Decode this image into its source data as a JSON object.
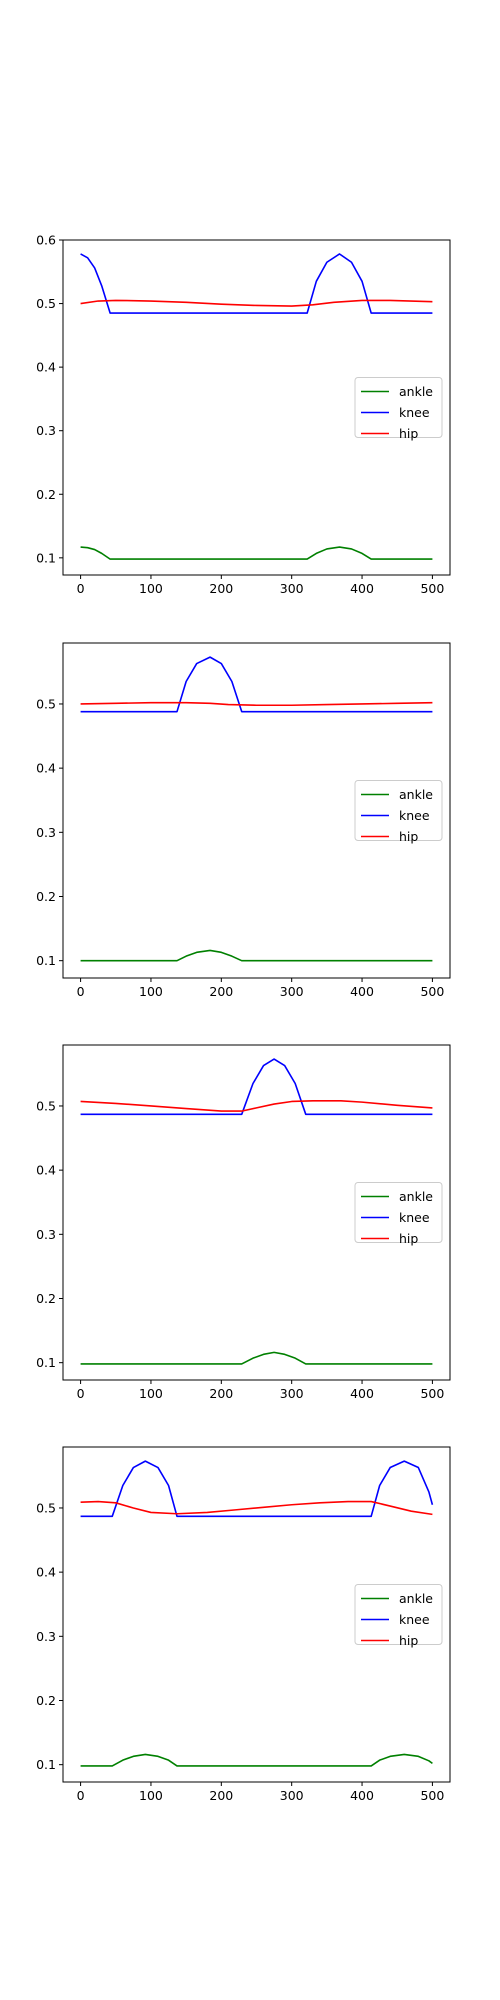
{
  "figure": {
    "background": "#ffffff"
  },
  "chart_data": [
    {
      "type": "line",
      "title": "",
      "xlabel": "",
      "ylabel": "",
      "xlim": [
        -25,
        525
      ],
      "ylim": [
        0.073,
        0.6
      ],
      "xticks": [
        "0",
        "100",
        "200",
        "300",
        "400",
        "500"
      ],
      "yticks": [
        "0.1",
        "0.2",
        "0.3",
        "0.4",
        "0.5",
        "0.6"
      ],
      "grid": false,
      "legend_position": "center-right",
      "series": [
        {
          "name": "ankle",
          "color": "#008000",
          "x": [
            0,
            10,
            20,
            30,
            42,
            60,
            100,
            150,
            200,
            250,
            300,
            322,
            335,
            350,
            368,
            385,
            400,
            413,
            430,
            470,
            500
          ],
          "values": [
            0.117,
            0.116,
            0.113,
            0.107,
            0.098,
            0.098,
            0.098,
            0.098,
            0.098,
            0.098,
            0.098,
            0.098,
            0.107,
            0.114,
            0.117,
            0.114,
            0.107,
            0.098,
            0.098,
            0.098,
            0.098
          ]
        },
        {
          "name": "knee",
          "color": "#0000ff",
          "x": [
            0,
            10,
            20,
            30,
            42,
            60,
            100,
            150,
            200,
            250,
            300,
            322,
            335,
            350,
            368,
            385,
            400,
            413,
            430,
            470,
            500
          ],
          "values": [
            0.578,
            0.572,
            0.556,
            0.528,
            0.485,
            0.485,
            0.485,
            0.485,
            0.485,
            0.485,
            0.485,
            0.485,
            0.535,
            0.565,
            0.578,
            0.565,
            0.535,
            0.485,
            0.485,
            0.485,
            0.485
          ]
        },
        {
          "name": "hip",
          "color": "#ff0000",
          "x": [
            0,
            25,
            50,
            100,
            150,
            200,
            250,
            300,
            330,
            360,
            400,
            440,
            500
          ],
          "values": [
            0.5,
            0.504,
            0.505,
            0.504,
            0.502,
            0.499,
            0.497,
            0.496,
            0.498,
            0.502,
            0.505,
            0.505,
            0.503
          ]
        }
      ]
    },
    {
      "type": "line",
      "title": "",
      "xlabel": "",
      "ylabel": "",
      "xlim": [
        -25,
        525
      ],
      "ylim": [
        0.073,
        0.595
      ],
      "xticks": [
        "0",
        "100",
        "200",
        "300",
        "400",
        "500"
      ],
      "yticks": [
        "0.1",
        "0.2",
        "0.3",
        "0.4",
        "0.5"
      ],
      "grid": false,
      "legend_position": "center-right",
      "series": [
        {
          "name": "ankle",
          "color": "#008000",
          "x": [
            0,
            50,
            100,
            137,
            150,
            165,
            184,
            200,
            215,
            229,
            260,
            300,
            400,
            500
          ],
          "values": [
            0.1,
            0.1,
            0.1,
            0.1,
            0.107,
            0.113,
            0.116,
            0.113,
            0.107,
            0.1,
            0.1,
            0.1,
            0.1,
            0.1
          ]
        },
        {
          "name": "knee",
          "color": "#0000ff",
          "x": [
            0,
            50,
            100,
            137,
            150,
            165,
            184,
            200,
            215,
            229,
            260,
            300,
            400,
            500
          ],
          "values": [
            0.488,
            0.488,
            0.488,
            0.488,
            0.535,
            0.563,
            0.573,
            0.563,
            0.535,
            0.488,
            0.488,
            0.488,
            0.488,
            0.488
          ]
        },
        {
          "name": "hip",
          "color": "#ff0000",
          "x": [
            0,
            50,
            100,
            150,
            184,
            210,
            250,
            300,
            350,
            400,
            450,
            500
          ],
          "values": [
            0.5,
            0.501,
            0.502,
            0.502,
            0.501,
            0.499,
            0.498,
            0.498,
            0.499,
            0.5,
            0.501,
            0.502
          ]
        }
      ]
    },
    {
      "type": "line",
      "title": "",
      "xlabel": "",
      "ylabel": "",
      "xlim": [
        -25,
        525
      ],
      "ylim": [
        0.073,
        0.595
      ],
      "xticks": [
        "0",
        "100",
        "200",
        "300",
        "400",
        "500"
      ],
      "yticks": [
        "0.1",
        "0.2",
        "0.3",
        "0.4",
        "0.5"
      ],
      "grid": false,
      "legend_position": "center-right",
      "series": [
        {
          "name": "ankle",
          "color": "#008000",
          "x": [
            0,
            50,
            100,
            150,
            200,
            229,
            245,
            260,
            275,
            290,
            305,
            320,
            350,
            400,
            450,
            500
          ],
          "values": [
            0.098,
            0.098,
            0.098,
            0.098,
            0.098,
            0.098,
            0.107,
            0.113,
            0.116,
            0.113,
            0.107,
            0.098,
            0.098,
            0.098,
            0.098,
            0.098
          ]
        },
        {
          "name": "knee",
          "color": "#0000ff",
          "x": [
            0,
            50,
            100,
            150,
            200,
            229,
            245,
            260,
            275,
            290,
            305,
            320,
            350,
            400,
            450,
            500
          ],
          "values": [
            0.487,
            0.487,
            0.487,
            0.487,
            0.487,
            0.487,
            0.535,
            0.563,
            0.573,
            0.563,
            0.535,
            0.487,
            0.487,
            0.487,
            0.487,
            0.487
          ]
        },
        {
          "name": "hip",
          "color": "#ff0000",
          "x": [
            0,
            50,
            100,
            150,
            200,
            229,
            250,
            275,
            300,
            330,
            370,
            400,
            450,
            500
          ],
          "values": [
            0.507,
            0.504,
            0.5,
            0.496,
            0.492,
            0.492,
            0.497,
            0.503,
            0.507,
            0.508,
            0.508,
            0.506,
            0.501,
            0.497
          ]
        }
      ]
    },
    {
      "type": "line",
      "title": "",
      "xlabel": "",
      "ylabel": "",
      "xlim": [
        -25,
        525
      ],
      "ylim": [
        0.073,
        0.595
      ],
      "xticks": [
        "0",
        "100",
        "200",
        "300",
        "400",
        "500"
      ],
      "yticks": [
        "0.1",
        "0.2",
        "0.3",
        "0.4",
        "0.5"
      ],
      "grid": false,
      "legend_position": "center-right",
      "series": [
        {
          "name": "ankle",
          "color": "#008000",
          "x": [
            0,
            25,
            45,
            60,
            75,
            92,
            110,
            125,
            137,
            160,
            200,
            300,
            413,
            425,
            440,
            460,
            480,
            495,
            500
          ],
          "values": [
            0.098,
            0.098,
            0.098,
            0.107,
            0.113,
            0.116,
            0.113,
            0.107,
            0.098,
            0.098,
            0.098,
            0.098,
            0.098,
            0.107,
            0.113,
            0.116,
            0.113,
            0.106,
            0.102
          ]
        },
        {
          "name": "knee",
          "color": "#0000ff",
          "x": [
            0,
            25,
            45,
            60,
            75,
            92,
            110,
            125,
            137,
            160,
            200,
            300,
            413,
            425,
            440,
            460,
            480,
            495,
            500
          ],
          "values": [
            0.487,
            0.487,
            0.487,
            0.535,
            0.563,
            0.573,
            0.563,
            0.535,
            0.487,
            0.487,
            0.487,
            0.487,
            0.487,
            0.535,
            0.563,
            0.573,
            0.563,
            0.525,
            0.505
          ]
        },
        {
          "name": "hip",
          "color": "#ff0000",
          "x": [
            0,
            25,
            50,
            75,
            100,
            137,
            180,
            220,
            260,
            300,
            340,
            380,
            413,
            440,
            470,
            500
          ],
          "values": [
            0.509,
            0.51,
            0.508,
            0.5,
            0.493,
            0.491,
            0.493,
            0.497,
            0.501,
            0.505,
            0.508,
            0.51,
            0.51,
            0.503,
            0.495,
            0.49
          ]
        }
      ]
    }
  ]
}
